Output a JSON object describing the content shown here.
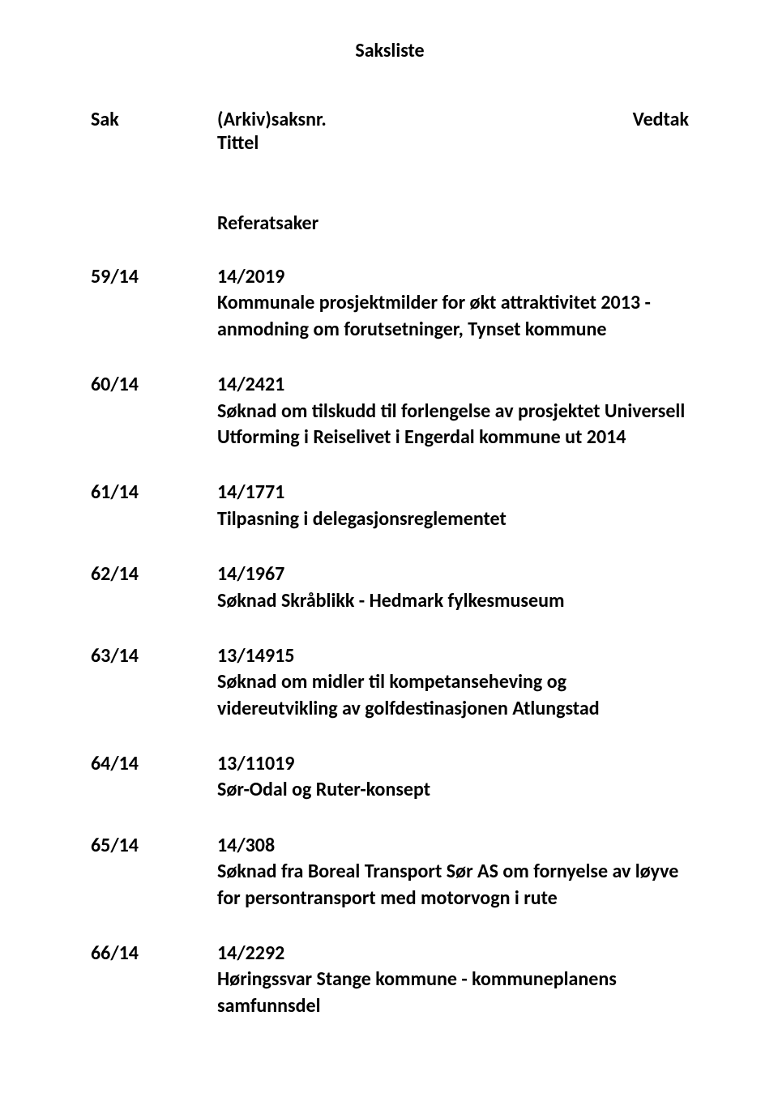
{
  "doc": {
    "title": "Saksliste",
    "header_sak": "Sak",
    "header_arkiv_line1": "(Arkiv)saksnr.",
    "header_arkiv_line2": "Tittel",
    "header_vedtak": "Vedtak",
    "section_heading": "Referatsaker"
  },
  "items": [
    {
      "num": "59/14",
      "ref": "14/2019",
      "title": "Kommunale prosjektmilder for økt attraktivitet 2013 - anmodning om forutsetninger, Tynset kommune"
    },
    {
      "num": "60/14",
      "ref": "14/2421",
      "title": "Søknad om tilskudd til forlengelse av prosjektet Universell Utforming i Reiselivet i Engerdal kommune ut 2014"
    },
    {
      "num": "61/14",
      "ref": "14/1771",
      "title": "Tilpasning i delegasjonsreglementet"
    },
    {
      "num": "62/14",
      "ref": "14/1967",
      "title": "Søknad Skråblikk - Hedmark fylkesmuseum"
    },
    {
      "num": "63/14",
      "ref": "13/14915",
      "title": "Søknad om midler til kompetanseheving og videreutvikling av golfdestinasjonen Atlungstad"
    },
    {
      "num": "64/14",
      "ref": "13/11019",
      "title": "Sør-Odal og Ruter-konsept"
    },
    {
      "num": "65/14",
      "ref": "14/308",
      "title": "Søknad fra Boreal Transport Sør AS om fornyelse av løyve for persontransport med motorvogn i rute"
    },
    {
      "num": "66/14",
      "ref": "14/2292",
      "title": "Høringssvar Stange kommune - kommuneplanens samfunnsdel"
    }
  ]
}
